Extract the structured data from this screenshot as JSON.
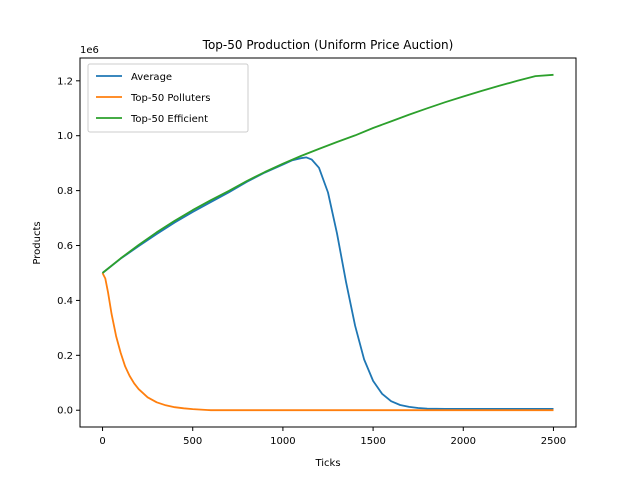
{
  "chart_data": {
    "type": "line",
    "title": "Top-50 Production (Uniform Price Auction)",
    "xlabel": "Ticks",
    "ylabel": "Products",
    "y_offset_label": "1e6",
    "xlim": [
      -125,
      2625
    ],
    "ylim": [
      -0.0611,
      1.2831
    ],
    "x_ticks": [
      0,
      500,
      1000,
      1500,
      2000,
      2500
    ],
    "x_tick_labels": [
      "0",
      "500",
      "1000",
      "1500",
      "2000",
      "2500"
    ],
    "y_ticks": [
      0.0,
      0.2,
      0.4,
      0.6,
      0.8,
      1.0,
      1.2
    ],
    "y_tick_labels": [
      "0.0",
      "0.2",
      "0.4",
      "0.6",
      "0.8",
      "1.0",
      "1.2"
    ],
    "y_scale_note": "values in units of 1e6",
    "grid": false,
    "legend_position": "upper-left",
    "series": [
      {
        "name": "Average",
        "color": "#1f77b4",
        "points": [
          [
            0,
            0.5
          ],
          [
            100,
            0.552
          ],
          [
            200,
            0.598
          ],
          [
            300,
            0.642
          ],
          [
            400,
            0.684
          ],
          [
            500,
            0.722
          ],
          [
            600,
            0.758
          ],
          [
            700,
            0.794
          ],
          [
            800,
            0.832
          ],
          [
            900,
            0.866
          ],
          [
            1000,
            0.895
          ],
          [
            1050,
            0.91
          ],
          [
            1100,
            0.918
          ],
          [
            1130,
            0.921
          ],
          [
            1160,
            0.913
          ],
          [
            1200,
            0.883
          ],
          [
            1250,
            0.793
          ],
          [
            1300,
            0.644
          ],
          [
            1350,
            0.468
          ],
          [
            1400,
            0.308
          ],
          [
            1450,
            0.185
          ],
          [
            1500,
            0.107
          ],
          [
            1550,
            0.06
          ],
          [
            1600,
            0.033
          ],
          [
            1650,
            0.019
          ],
          [
            1700,
            0.012
          ],
          [
            1750,
            0.008
          ],
          [
            1800,
            0.006
          ],
          [
            1900,
            0.005
          ],
          [
            2000,
            0.005
          ],
          [
            2500,
            0.005
          ]
        ]
      },
      {
        "name": "Top-50 Polluters",
        "color": "#ff7f0e",
        "points": [
          [
            0,
            0.5
          ],
          [
            15,
            0.48
          ],
          [
            30,
            0.43
          ],
          [
            50,
            0.35
          ],
          [
            75,
            0.27
          ],
          [
            100,
            0.21
          ],
          [
            125,
            0.16
          ],
          [
            150,
            0.125
          ],
          [
            175,
            0.098
          ],
          [
            200,
            0.077
          ],
          [
            250,
            0.047
          ],
          [
            300,
            0.029
          ],
          [
            350,
            0.018
          ],
          [
            400,
            0.011
          ],
          [
            450,
            0.007
          ],
          [
            500,
            0.004
          ],
          [
            580,
            0.001
          ],
          [
            600,
            0.0
          ],
          [
            2500,
            0.0
          ]
        ]
      },
      {
        "name": "Top-50 Efficient",
        "color": "#2ca02c",
        "points": [
          [
            0,
            0.5
          ],
          [
            100,
            0.553
          ],
          [
            200,
            0.602
          ],
          [
            300,
            0.648
          ],
          [
            400,
            0.69
          ],
          [
            500,
            0.729
          ],
          [
            600,
            0.765
          ],
          [
            700,
            0.799
          ],
          [
            800,
            0.835
          ],
          [
            900,
            0.868
          ],
          [
            1000,
            0.898
          ],
          [
            1100,
            0.926
          ],
          [
            1200,
            0.952
          ],
          [
            1300,
            0.977
          ],
          [
            1400,
            1.001
          ],
          [
            1500,
            1.028
          ],
          [
            1600,
            1.052
          ],
          [
            1700,
            1.077
          ],
          [
            1800,
            1.1
          ],
          [
            1900,
            1.122
          ],
          [
            2000,
            1.143
          ],
          [
            2100,
            1.163
          ],
          [
            2200,
            1.182
          ],
          [
            2300,
            1.2
          ],
          [
            2400,
            1.217
          ],
          [
            2500,
            1.222
          ]
        ]
      }
    ]
  }
}
